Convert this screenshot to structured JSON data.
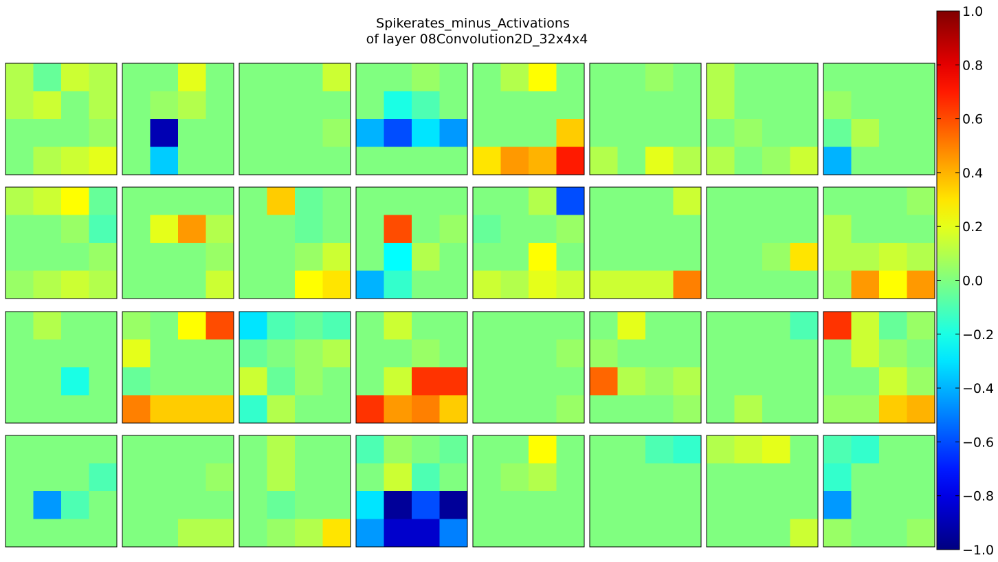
{
  "chart_data": {
    "type": "heatmap",
    "title_line1": "Spikerates_minus_Activations",
    "title_line2": "of layer 08Convolution2D_32x4x4",
    "grid_rows": 4,
    "grid_cols": 8,
    "colormap": "jet",
    "vmin": -1.0,
    "vmax": 1.0,
    "colorbar_ticks": [
      "1.0",
      "0.8",
      "0.6",
      "0.4",
      "0.2",
      "0.0",
      "−0.2",
      "−0.4",
      "−0.6",
      "−0.8",
      "−1.0"
    ],
    "colorbar_tick_values": [
      1.0,
      0.8,
      0.6,
      0.4,
      0.2,
      0.0,
      -0.2,
      -0.4,
      -0.6,
      -0.8,
      -1.0
    ],
    "panels": [
      [
        [
          0.1,
          -0.05,
          0.15,
          0.1
        ],
        [
          0.1,
          0.15,
          0.0,
          0.1
        ],
        [
          0.0,
          0.0,
          0.0,
          0.05
        ],
        [
          0.0,
          0.1,
          0.15,
          0.2
        ]
      ],
      [
        [
          0.0,
          0.0,
          0.2,
          0.0
        ],
        [
          0.0,
          0.05,
          0.1,
          0.0
        ],
        [
          0.0,
          -0.9,
          0.0,
          0.0
        ],
        [
          0.0,
          -0.35,
          0.0,
          0.0
        ]
      ],
      [
        [
          0.0,
          0.0,
          0.0,
          0.15
        ],
        [
          0.0,
          0.0,
          0.0,
          0.0
        ],
        [
          0.0,
          0.0,
          0.0,
          0.05
        ],
        [
          0.0,
          0.0,
          0.0,
          0.0
        ]
      ],
      [
        [
          0.0,
          0.0,
          0.05,
          0.0
        ],
        [
          0.0,
          -0.2,
          -0.1,
          0.0
        ],
        [
          -0.4,
          -0.6,
          -0.3,
          -0.45
        ],
        [
          0.0,
          0.0,
          0.0,
          0.0
        ]
      ],
      [
        [
          0.0,
          0.1,
          0.25,
          0.0
        ],
        [
          0.0,
          0.0,
          0.0,
          0.0
        ],
        [
          0.0,
          0.0,
          0.0,
          0.35
        ],
        [
          0.3,
          0.45,
          0.4,
          0.7
        ]
      ],
      [
        [
          0.0,
          0.0,
          0.05,
          0.0
        ],
        [
          0.0,
          0.0,
          0.0,
          0.0
        ],
        [
          0.0,
          0.0,
          0.0,
          0.0
        ],
        [
          0.1,
          0.0,
          0.2,
          0.1
        ]
      ],
      [
        [
          0.1,
          0.0,
          0.0,
          0.0
        ],
        [
          0.1,
          0.0,
          0.0,
          0.0
        ],
        [
          0.0,
          0.05,
          0.0,
          0.0
        ],
        [
          0.1,
          0.0,
          0.05,
          0.15
        ]
      ],
      [
        [
          0.0,
          0.0,
          0.0,
          0.0
        ],
        [
          0.05,
          0.0,
          0.0,
          0.0
        ],
        [
          -0.05,
          0.1,
          0.0,
          0.0
        ],
        [
          -0.4,
          0.0,
          0.0,
          0.0
        ]
      ],
      [
        [
          0.1,
          0.15,
          0.25,
          -0.05
        ],
        [
          0.0,
          0.0,
          0.05,
          -0.1
        ],
        [
          0.0,
          0.0,
          0.0,
          0.05
        ],
        [
          0.05,
          0.1,
          0.15,
          0.1
        ]
      ],
      [
        [
          0.0,
          0.0,
          0.0,
          0.0
        ],
        [
          0.0,
          0.2,
          0.45,
          0.1
        ],
        [
          0.0,
          0.0,
          0.0,
          0.05
        ],
        [
          0.0,
          0.0,
          0.0,
          0.15
        ]
      ],
      [
        [
          0.0,
          0.35,
          -0.05,
          0.0
        ],
        [
          0.0,
          0.0,
          -0.05,
          0.0
        ],
        [
          0.0,
          0.0,
          0.05,
          0.15
        ],
        [
          0.0,
          0.0,
          0.25,
          0.3
        ]
      ],
      [
        [
          0.0,
          0.0,
          0.0,
          0.0
        ],
        [
          0.0,
          0.6,
          0.0,
          0.05
        ],
        [
          0.0,
          -0.25,
          0.1,
          0.0
        ],
        [
          -0.4,
          -0.15,
          0.0,
          0.0
        ]
      ],
      [
        [
          0.0,
          0.0,
          0.1,
          -0.6
        ],
        [
          -0.05,
          0.0,
          0.0,
          0.05
        ],
        [
          0.0,
          0.0,
          0.25,
          0.0
        ],
        [
          0.15,
          0.1,
          0.2,
          0.15
        ]
      ],
      [
        [
          0.0,
          0.0,
          0.0,
          0.15
        ],
        [
          0.0,
          0.0,
          0.0,
          0.0
        ],
        [
          0.0,
          0.0,
          0.0,
          0.0
        ],
        [
          0.15,
          0.15,
          0.15,
          0.5
        ]
      ],
      [
        [
          0.0,
          0.0,
          0.0,
          0.0
        ],
        [
          0.0,
          0.0,
          0.0,
          0.0
        ],
        [
          0.0,
          0.0,
          0.05,
          0.3
        ],
        [
          0.0,
          0.0,
          0.0,
          0.0
        ]
      ],
      [
        [
          0.0,
          0.0,
          0.0,
          0.05
        ],
        [
          0.1,
          0.0,
          0.0,
          0.0
        ],
        [
          0.1,
          0.1,
          0.15,
          0.1
        ],
        [
          0.05,
          0.45,
          0.25,
          0.45
        ]
      ],
      [
        [
          0.0,
          0.1,
          0.0,
          0.0
        ],
        [
          0.0,
          0.0,
          0.0,
          0.0
        ],
        [
          0.0,
          0.0,
          -0.2,
          0.0
        ],
        [
          0.0,
          0.0,
          0.0,
          0.0
        ]
      ],
      [
        [
          0.05,
          0.0,
          0.25,
          0.6
        ],
        [
          0.2,
          0.0,
          0.0,
          0.0
        ],
        [
          -0.05,
          0.0,
          0.0,
          0.0
        ],
        [
          0.5,
          0.35,
          0.35,
          0.35
        ]
      ],
      [
        [
          -0.3,
          -0.1,
          -0.05,
          -0.1
        ],
        [
          -0.05,
          0.0,
          0.05,
          0.1
        ],
        [
          0.15,
          -0.05,
          0.05,
          0.0
        ],
        [
          -0.15,
          0.1,
          0.0,
          0.0
        ]
      ],
      [
        [
          0.0,
          0.15,
          0.0,
          0.0
        ],
        [
          0.0,
          0.0,
          0.05,
          0.0
        ],
        [
          0.0,
          0.15,
          0.65,
          0.65
        ],
        [
          0.65,
          0.45,
          0.5,
          0.35
        ]
      ],
      [
        [
          0.0,
          0.0,
          0.0,
          0.0
        ],
        [
          0.0,
          0.0,
          0.0,
          0.05
        ],
        [
          0.0,
          0.0,
          0.0,
          0.0
        ],
        [
          0.0,
          0.0,
          0.0,
          0.05
        ]
      ],
      [
        [
          0.0,
          0.2,
          0.0,
          0.0
        ],
        [
          0.05,
          0.0,
          0.0,
          0.0
        ],
        [
          0.55,
          0.1,
          0.05,
          0.1
        ],
        [
          0.0,
          0.0,
          0.0,
          0.05
        ]
      ],
      [
        [
          0.0,
          0.0,
          0.0,
          -0.1
        ],
        [
          0.0,
          0.0,
          0.0,
          0.0
        ],
        [
          0.0,
          0.0,
          0.0,
          0.0
        ],
        [
          0.0,
          0.1,
          0.0,
          0.0
        ]
      ],
      [
        [
          0.65,
          0.15,
          -0.05,
          0.05
        ],
        [
          0.0,
          0.15,
          0.05,
          0.0
        ],
        [
          0.0,
          0.0,
          0.15,
          0.05
        ],
        [
          0.05,
          0.05,
          0.35,
          0.4
        ]
      ],
      [
        [
          0.0,
          0.0,
          0.0,
          0.0
        ],
        [
          0.0,
          0.0,
          0.0,
          -0.1
        ],
        [
          0.0,
          -0.45,
          -0.1,
          0.0
        ],
        [
          0.0,
          0.0,
          0.0,
          0.0
        ]
      ],
      [
        [
          0.0,
          0.0,
          0.0,
          0.0
        ],
        [
          0.0,
          0.0,
          0.0,
          0.05
        ],
        [
          0.0,
          0.0,
          0.0,
          0.0
        ],
        [
          0.0,
          0.0,
          0.1,
          0.1
        ]
      ],
      [
        [
          0.0,
          0.1,
          0.0,
          0.0
        ],
        [
          0.0,
          0.1,
          0.0,
          0.0
        ],
        [
          0.0,
          -0.05,
          0.0,
          0.0
        ],
        [
          0.0,
          0.05,
          0.1,
          0.3
        ]
      ],
      [
        [
          -0.1,
          0.05,
          0.0,
          -0.05
        ],
        [
          0.0,
          0.15,
          -0.1,
          0.0
        ],
        [
          -0.3,
          -0.95,
          -0.6,
          -0.95
        ],
        [
          -0.45,
          -0.85,
          -0.85,
          -0.5
        ]
      ],
      [
        [
          0.0,
          0.0,
          0.25,
          0.0
        ],
        [
          0.0,
          0.05,
          0.1,
          0.0
        ],
        [
          0.0,
          0.0,
          0.0,
          0.0
        ],
        [
          0.0,
          0.0,
          0.0,
          0.0
        ]
      ],
      [
        [
          0.0,
          0.0,
          -0.1,
          -0.15
        ],
        [
          0.0,
          0.0,
          0.0,
          0.0
        ],
        [
          0.0,
          0.0,
          0.0,
          0.0
        ],
        [
          0.0,
          0.0,
          0.0,
          0.0
        ]
      ],
      [
        [
          0.1,
          0.15,
          0.2,
          0.0
        ],
        [
          0.0,
          0.0,
          0.0,
          0.0
        ],
        [
          0.0,
          0.0,
          0.0,
          0.0
        ],
        [
          0.0,
          0.0,
          0.0,
          0.15
        ]
      ],
      [
        [
          -0.1,
          -0.15,
          0.0,
          0.0
        ],
        [
          -0.15,
          0.0,
          0.0,
          0.0
        ],
        [
          -0.45,
          0.0,
          0.0,
          0.0
        ],
        [
          0.05,
          0.0,
          0.0,
          0.05
        ]
      ]
    ]
  }
}
